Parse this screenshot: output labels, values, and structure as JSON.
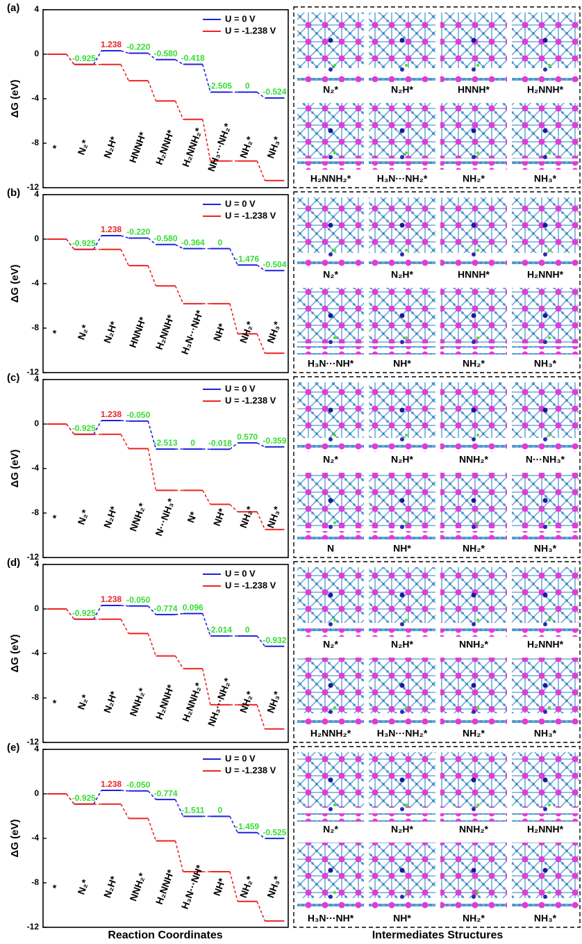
{
  "chart_data": [
    {
      "type": "energy-steps",
      "panel_label": "(a)",
      "ylabel": "ΔG (eV)",
      "ylim": [
        -12,
        4
      ],
      "yticks": [
        -12,
        -8,
        -4,
        0,
        4
      ],
      "categories": [
        "*",
        "N₂*",
        "N₂H*",
        "HNNH*",
        "H₂NNH*",
        "H₂NNH₂*",
        "NH₃···NH₂*",
        "NH₂*",
        "NH₃*"
      ],
      "series": [
        {
          "name": "U = 0 V",
          "color": "#1f1fe0",
          "values": [
            0,
            -0.925,
            0.313,
            0.093,
            -0.487,
            -0.905,
            -3.41,
            -3.41,
            -3.934
          ]
        },
        {
          "name": "U = -1.238 V",
          "color": "#ee2222",
          "values": [
            0,
            -0.925,
            -0.925,
            -2.383,
            -4.201,
            -5.857,
            -9.6,
            -9.6,
            -11.362
          ]
        }
      ],
      "steps": [
        -0.925,
        1.238,
        -0.22,
        -0.58,
        -0.418,
        -2.505,
        0,
        -0.524
      ],
      "step_labels": [
        "-0.925",
        "1.238",
        "-0.220",
        "-0.580",
        "-0.418",
        "-2.505",
        "0",
        "-0.524"
      ],
      "step_colors": [
        "#33dd33",
        "#ee2222",
        "#33dd33",
        "#33dd33",
        "#33dd33",
        "#33dd33",
        "#33dd33",
        "#33dd33"
      ]
    },
    {
      "type": "energy-steps",
      "panel_label": "(b)",
      "ylabel": "ΔG (eV)",
      "ylim": [
        -12,
        4
      ],
      "yticks": [
        -12,
        -8,
        -4,
        0,
        4
      ],
      "categories": [
        "*",
        "N₂*",
        "N₂H*",
        "HNNH*",
        "H₂NNH*",
        "H₃N···NH*",
        "NH*",
        "NH₂*",
        "NH₃*"
      ],
      "series": [
        {
          "name": "U = 0 V",
          "color": "#1f1fe0",
          "values": [
            0,
            -0.925,
            0.313,
            0.093,
            -0.487,
            -0.851,
            -0.851,
            -2.327,
            -2.831
          ]
        },
        {
          "name": "U = -1.238 V",
          "color": "#ee2222",
          "values": [
            0,
            -0.925,
            -0.925,
            -2.383,
            -4.201,
            -5.803,
            -5.803,
            -8.517,
            -10.259
          ]
        }
      ],
      "steps": [
        -0.925,
        1.238,
        -0.22,
        -0.58,
        -0.364,
        0,
        -1.476,
        -0.504
      ],
      "step_labels": [
        "-0.925",
        "1.238",
        "-0.220",
        "-0.580",
        "-0.364",
        "0",
        "-1.476",
        "-0.504"
      ],
      "step_colors": [
        "#33dd33",
        "#ee2222",
        "#33dd33",
        "#33dd33",
        "#33dd33",
        "#33dd33",
        "#33dd33",
        "#33dd33"
      ]
    },
    {
      "type": "energy-steps",
      "panel_label": "(c)",
      "ylabel": "ΔG (eV)",
      "ylim": [
        -12,
        4
      ],
      "yticks": [
        -12,
        -8,
        -4,
        0,
        4
      ],
      "categories": [
        "*",
        "N₂*",
        "N₂H*",
        "NNH₂*",
        "N···NH₃*",
        "N*",
        "NH*",
        "NH₂*",
        "NH₃*"
      ],
      "series": [
        {
          "name": "U = 0 V",
          "color": "#1f1fe0",
          "values": [
            0,
            -0.925,
            0.313,
            0.263,
            -2.25,
            -2.25,
            -2.268,
            -1.698,
            -2.057
          ]
        },
        {
          "name": "U = -1.238 V",
          "color": "#ee2222",
          "values": [
            0,
            -0.925,
            -0.925,
            -2.213,
            -5.964,
            -5.964,
            -7.22,
            -7.888,
            -9.485
          ]
        }
      ],
      "steps": [
        -0.925,
        1.238,
        -0.05,
        -2.513,
        0,
        -0.018,
        0.57,
        -0.359
      ],
      "step_labels": [
        "-0.925",
        "1.238",
        "-0.050",
        "-2.513",
        "0",
        "-0.018",
        "0.570",
        "-0.359"
      ],
      "step_colors": [
        "#33dd33",
        "#ee2222",
        "#33dd33",
        "#33dd33",
        "#33dd33",
        "#33dd33",
        "#33dd33",
        "#33dd33"
      ]
    },
    {
      "type": "energy-steps",
      "panel_label": "(d)",
      "ylabel": "ΔG (eV)",
      "ylim": [
        -12,
        4
      ],
      "yticks": [
        -12,
        -8,
        -4,
        0,
        4
      ],
      "categories": [
        "*",
        "N₂*",
        "N₂H*",
        "NNH₂*",
        "H₂NNH*",
        "H₂NNH₂*",
        "NH₃···NH₂*",
        "NH₂*",
        "NH₃*"
      ],
      "series": [
        {
          "name": "U = 0 V",
          "color": "#1f1fe0",
          "values": [
            0,
            -0.925,
            0.313,
            0.263,
            -0.511,
            -0.415,
            -2.429,
            -2.429,
            -3.361
          ]
        },
        {
          "name": "U = -1.238 V",
          "color": "#ee2222",
          "values": [
            0,
            -0.925,
            -0.925,
            -2.213,
            -4.225,
            -5.367,
            -8.619,
            -8.619,
            -10.789
          ]
        }
      ],
      "steps": [
        -0.925,
        1.238,
        -0.05,
        -0.774,
        0.096,
        -2.014,
        0,
        -0.932
      ],
      "step_labels": [
        "-0.925",
        "1.238",
        "-0.050",
        "-0.774",
        "0.096",
        "-2.014",
        "0",
        "-0.932"
      ],
      "step_colors": [
        "#33dd33",
        "#ee2222",
        "#33dd33",
        "#33dd33",
        "#33dd33",
        "#33dd33",
        "#33dd33",
        "#33dd33"
      ]
    },
    {
      "type": "energy-steps",
      "panel_label": "(e)",
      "ylabel": "ΔG (eV)",
      "ylim": [
        -12,
        4
      ],
      "yticks": [
        -12,
        -8,
        -4,
        0,
        4
      ],
      "categories": [
        "*",
        "N₂*",
        "N₂H*",
        "NNH₂*",
        "H₂NNH*",
        "H₃N···NH*",
        "NH*",
        "NH₂*",
        "NH₃*"
      ],
      "series": [
        {
          "name": "U = 0 V",
          "color": "#1f1fe0",
          "values": [
            0,
            -0.925,
            0.313,
            0.263,
            -0.511,
            -2.022,
            -2.022,
            -3.481,
            -4.006
          ]
        },
        {
          "name": "U = -1.238 V",
          "color": "#ee2222",
          "values": [
            0,
            -0.925,
            -0.925,
            -2.213,
            -4.225,
            -7.0,
            -7.0,
            -9.669,
            -11.432
          ]
        }
      ],
      "steps": [
        -0.925,
        1.238,
        -0.05,
        -0.774,
        -1.511,
        0,
        -1.459,
        -0.525
      ],
      "step_labels": [
        "-0.925",
        "1.238",
        "-0.050",
        "-0.774",
        "-1.511",
        "0",
        "-1.459",
        "-0.525"
      ],
      "step_colors": [
        "#33dd33",
        "#ee2222",
        "#33dd33",
        "#33dd33",
        "#33dd33",
        "#33dd33",
        "#33dd33",
        "#33dd33"
      ]
    }
  ],
  "structure_panels": [
    {
      "labels": [
        "N₂*",
        "N₂H*",
        "HNNH*",
        "H₂NNH*",
        "H₂NNH₂*",
        "H₃N···NH₂*",
        "NH₂*",
        "NH₃*"
      ]
    },
    {
      "labels": [
        "N₂*",
        "N₂H*",
        "HNNH*",
        "H₂NNH*",
        "H₃N···NH*",
        "NH*",
        "NH₂*",
        "NH₃*"
      ]
    },
    {
      "labels": [
        "N₂*",
        "N₂H*",
        "NNH₂*",
        "N···NH₃*",
        "N",
        "NH*",
        "NH₂*",
        "NH₃*"
      ]
    },
    {
      "labels": [
        "N₂*",
        "N₂H*",
        "NNH₂*",
        "H₂NNH*",
        "H₂NNH₂*",
        "H₃N···NH₂*",
        "NH₂*",
        "NH₃*"
      ]
    },
    {
      "labels": [
        "N₂*",
        "N₂H*",
        "NNH₂*",
        "H₂NNH*",
        "H₃N···NH*",
        "NH*",
        "NH₂*",
        "NH₃*"
      ]
    }
  ],
  "x_axis_title": "Reaction Coordinates",
  "structures_title": "Intermediates Structures"
}
